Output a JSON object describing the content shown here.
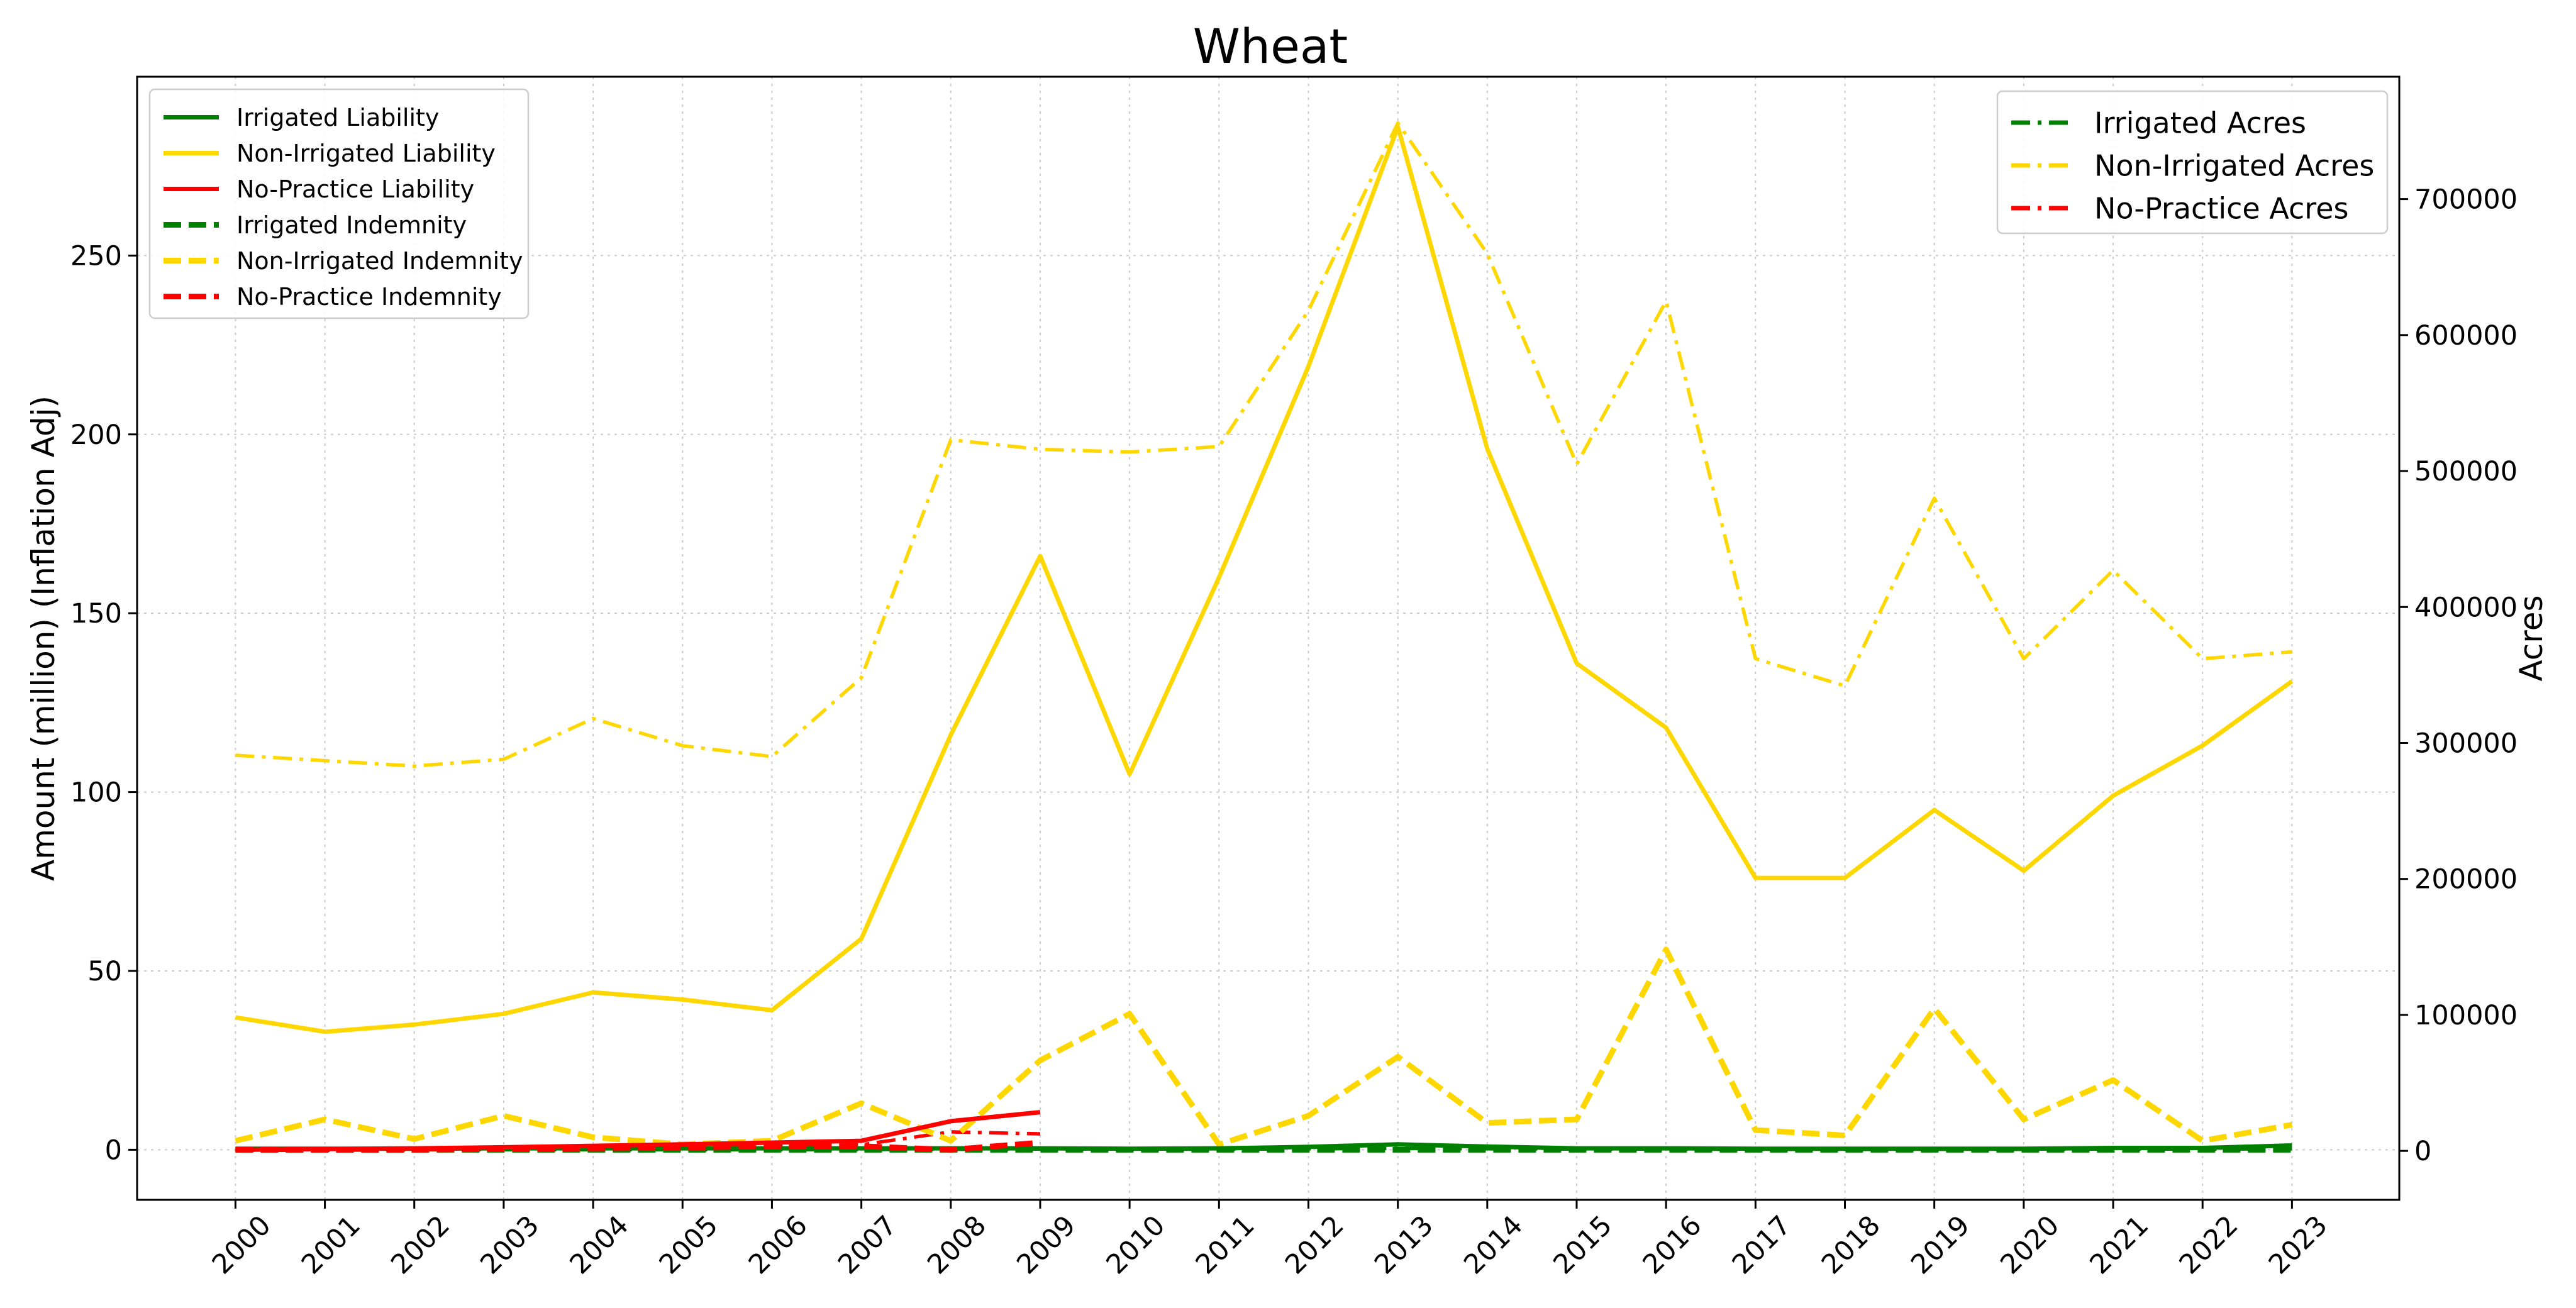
{
  "chart_data": {
    "type": "line",
    "title": "Wheat",
    "xlabel": "",
    "ylabel": "Amount (million) (Inflation Adj)",
    "y2label": "Acres",
    "x": [
      2000,
      2001,
      2002,
      2003,
      2004,
      2005,
      2006,
      2007,
      2008,
      2009,
      2010,
      2011,
      2012,
      2013,
      2014,
      2015,
      2016,
      2017,
      2018,
      2019,
      2020,
      2021,
      2022,
      2023
    ],
    "xlim": [
      1998.9,
      2024.2
    ],
    "ylim": [
      -14,
      300
    ],
    "y2lim": [
      -36000,
      790000
    ],
    "y_ticks": [
      0,
      50,
      100,
      150,
      200,
      250
    ],
    "y2_ticks": [
      0,
      100000,
      200000,
      300000,
      400000,
      500000,
      600000,
      700000
    ],
    "grid": true,
    "colors": {
      "irrigated": "#008000",
      "non_irrigated": "#FFD700",
      "no_practice": "#FF0000"
    },
    "legend_left": {
      "placement": "upper-left",
      "entries": [
        {
          "label": "Irrigated Liability",
          "color": "#008000",
          "dash": "solid"
        },
        {
          "label": "Non-Irrigated Liability",
          "color": "#FFD700",
          "dash": "solid"
        },
        {
          "label": "No-Practice Liability",
          "color": "#FF0000",
          "dash": "solid"
        },
        {
          "label": "Irrigated Indemnity",
          "color": "#008000",
          "dash": "dashed"
        },
        {
          "label": "Non-Irrigated Indemnity",
          "color": "#FFD700",
          "dash": "dashed"
        },
        {
          "label": "No-Practice Indemnity",
          "color": "#FF0000",
          "dash": "dashed"
        }
      ]
    },
    "legend_right": {
      "placement": "upper-right",
      "entries": [
        {
          "label": "Irrigated Acres",
          "color": "#008000",
          "dash": "dashdot"
        },
        {
          "label": "Non-Irrigated Acres",
          "color": "#FFD700",
          "dash": "dashdot"
        },
        {
          "label": "No-Practice Acres",
          "color": "#FF0000",
          "dash": "dashdot"
        }
      ]
    },
    "series": [
      {
        "name": "Non-Irrigated Acres",
        "axis": "right",
        "color": "#FFD700",
        "dash": "dashdot",
        "x": [
          2000,
          2001,
          2002,
          2003,
          2004,
          2005,
          2006,
          2007,
          2008,
          2009,
          2010,
          2011,
          2012,
          2013,
          2014,
          2015,
          2016,
          2017,
          2018,
          2019,
          2020,
          2021,
          2022,
          2023
        ],
        "values": [
          291000,
          287000,
          283000,
          288000,
          318000,
          298000,
          290000,
          348000,
          523000,
          516000,
          514000,
          518000,
          618000,
          756000,
          660000,
          505000,
          625000,
          362000,
          342000,
          480000,
          362000,
          427000,
          362000,
          367000
        ]
      },
      {
        "name": "Irrigated Acres",
        "axis": "right",
        "color": "#008000",
        "dash": "dashdot",
        "x": [
          2000,
          2001,
          2002,
          2003,
          2004,
          2005,
          2006,
          2007,
          2008,
          2009,
          2010,
          2011,
          2012,
          2013,
          2014,
          2015,
          2016,
          2017,
          2018,
          2019,
          2020,
          2021,
          2022,
          2023
        ],
        "values": [
          800,
          800,
          800,
          900,
          900,
          900,
          900,
          1000,
          1200,
          1300,
          1300,
          1200,
          1500,
          1800,
          1500,
          1300,
          1300,
          1100,
          1100,
          1200,
          1200,
          1300,
          1300,
          1500
        ]
      },
      {
        "name": "No-Practice Acres",
        "axis": "right",
        "color": "#FF0000",
        "dash": "dashdot",
        "x": [
          2000,
          2001,
          2002,
          2003,
          2004,
          2005,
          2006,
          2007,
          2008,
          2009
        ],
        "values": [
          300,
          500,
          700,
          1500,
          2500,
          3000,
          3500,
          4500,
          14000,
          12500
        ]
      },
      {
        "name": "Non-Irrigated Liability",
        "axis": "left",
        "color": "#FFD700",
        "dash": "solid",
        "x": [
          2000,
          2001,
          2002,
          2003,
          2004,
          2005,
          2006,
          2007,
          2008,
          2009,
          2010,
          2011,
          2012,
          2013,
          2014,
          2015,
          2016,
          2017,
          2018,
          2019,
          2020,
          2021,
          2022,
          2023
        ],
        "values": [
          37,
          33,
          35,
          38,
          44,
          42,
          39,
          59,
          116,
          166,
          105,
          160,
          219,
          286,
          196,
          136,
          118,
          76,
          76,
          95,
          78,
          99,
          113,
          131
        ]
      },
      {
        "name": "Non-Irrigated Indemnity",
        "axis": "left",
        "color": "#FFD700",
        "dash": "dashed",
        "x": [
          2000,
          2001,
          2002,
          2003,
          2004,
          2005,
          2006,
          2007,
          2008,
          2009,
          2010,
          2011,
          2012,
          2013,
          2014,
          2015,
          2016,
          2017,
          2018,
          2019,
          2020,
          2021,
          2022,
          2023
        ],
        "values": [
          2.5,
          8.5,
          3,
          9.5,
          3.5,
          1.5,
          2.5,
          13,
          2.5,
          25,
          38,
          1.5,
          9.5,
          26,
          7.5,
          8.5,
          56,
          5.5,
          4,
          39.5,
          8.5,
          19.5,
          2.5,
          7
        ]
      },
      {
        "name": "Irrigated Liability",
        "axis": "left",
        "color": "#008000",
        "dash": "solid",
        "x": [
          2000,
          2001,
          2002,
          2003,
          2004,
          2005,
          2006,
          2007,
          2008,
          2009,
          2010,
          2011,
          2012,
          2013,
          2014,
          2015,
          2016,
          2017,
          2018,
          2019,
          2020,
          2021,
          2022,
          2023
        ],
        "values": [
          0.3,
          0.3,
          0.3,
          0.4,
          0.4,
          0.4,
          0.4,
          0.4,
          0.4,
          0.4,
          0.3,
          0.4,
          0.8,
          1.5,
          0.9,
          0.4,
          0.4,
          0.3,
          0.3,
          0.3,
          0.3,
          0.5,
          0.5,
          1.2
        ]
      },
      {
        "name": "Irrigated Indemnity",
        "axis": "left",
        "color": "#008000",
        "dash": "dashed",
        "x": [
          2000,
          2001,
          2002,
          2003,
          2004,
          2005,
          2006,
          2007,
          2008,
          2009,
          2010,
          2011,
          2012,
          2013,
          2014,
          2015,
          2016,
          2017,
          2018,
          2019,
          2020,
          2021,
          2022,
          2023
        ],
        "values": [
          0,
          0,
          0,
          0,
          0,
          0,
          0,
          0,
          0,
          0,
          0,
          0,
          0,
          0,
          0,
          0,
          0,
          0,
          0,
          0,
          0,
          0,
          0,
          0
        ]
      },
      {
        "name": "No-Practice Liability",
        "axis": "left",
        "color": "#FF0000",
        "dash": "solid",
        "x": [
          2000,
          2001,
          2002,
          2003,
          2004,
          2005,
          2006,
          2007,
          2008,
          2009
        ],
        "values": [
          0,
          0.2,
          0.4,
          0.7,
          1.1,
          1.5,
          2,
          2.5,
          8,
          10.5
        ]
      },
      {
        "name": "No-Practice Indemnity",
        "axis": "left",
        "color": "#FF0000",
        "dash": "dashed",
        "x": [
          2000,
          2001,
          2002,
          2003,
          2004,
          2005,
          2006,
          2007,
          2008,
          2009
        ],
        "values": [
          0,
          0,
          0,
          0.2,
          0.4,
          0.6,
          1,
          1,
          0,
          2
        ]
      }
    ]
  }
}
